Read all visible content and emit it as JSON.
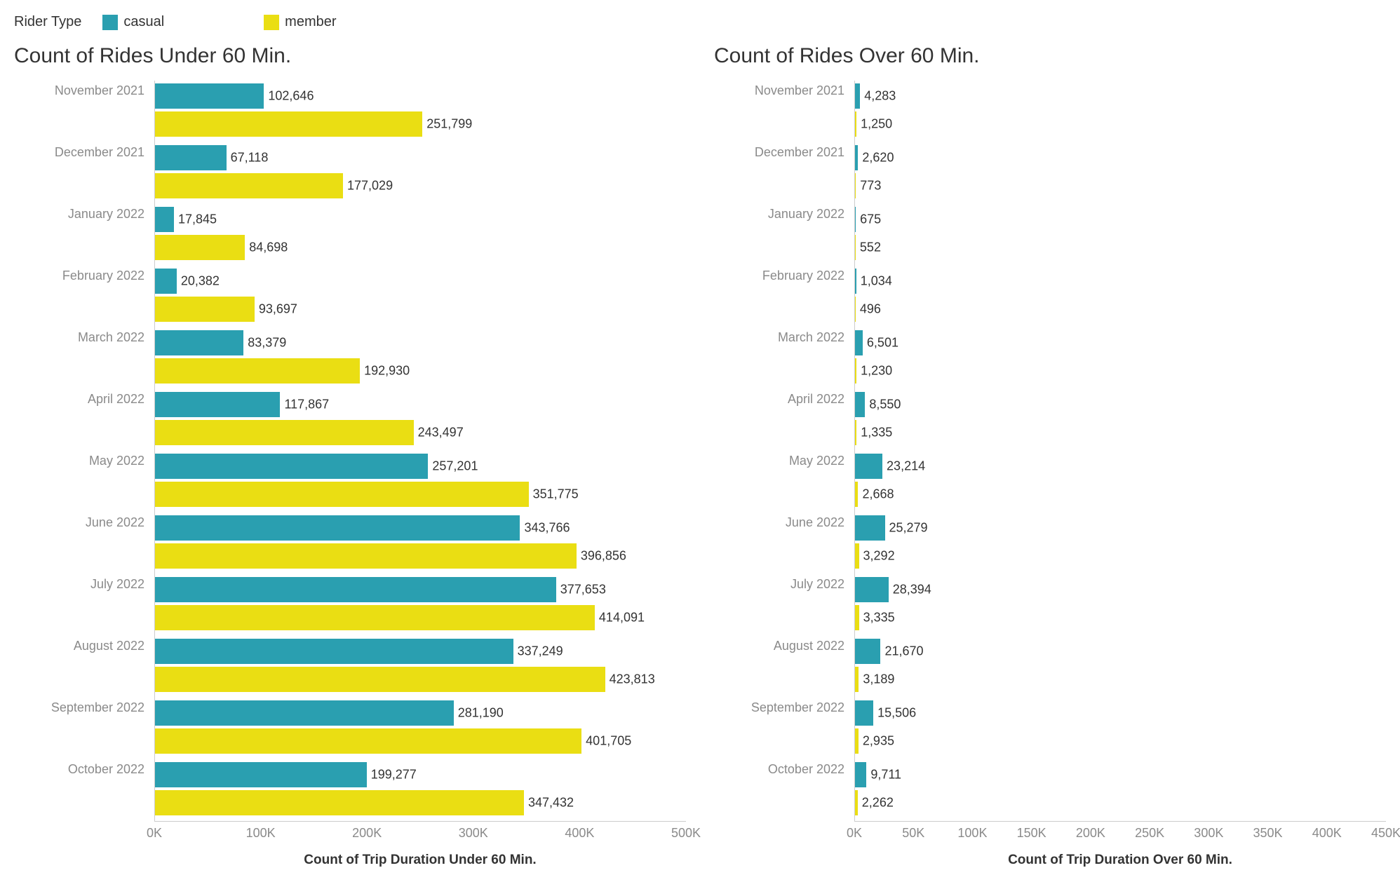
{
  "legend": {
    "title": "Rider Type",
    "items": [
      {
        "label": "casual",
        "color": "#2a9fb0"
      },
      {
        "label": "member",
        "color": "#eade13"
      }
    ]
  },
  "colors": {
    "casual": "#2a9fb0",
    "member": "#eade13",
    "background": "#ffffff",
    "axis": "#cccccc",
    "month_label": "#8a8a8a",
    "value_label": "#333333"
  },
  "months": [
    "November 2021",
    "December 2021",
    "January 2022",
    "February 2022",
    "March 2022",
    "April 2022",
    "May 2022",
    "June 2022",
    "July 2022",
    "August 2022",
    "September 2022",
    "October 2022"
  ],
  "left_chart": {
    "title": "Count of Rides Under 60 Min.",
    "x_title": "Count of Trip Duration Under 60 Min.",
    "xlim": 500000,
    "ticks": [
      {
        "v": 0,
        "label": "0K"
      },
      {
        "v": 100000,
        "label": "100K"
      },
      {
        "v": 200000,
        "label": "200K"
      },
      {
        "v": 300000,
        "label": "300K"
      },
      {
        "v": 400000,
        "label": "400K"
      },
      {
        "v": 500000,
        "label": "500K"
      }
    ],
    "data": [
      {
        "casual": 102646,
        "member": 251799
      },
      {
        "casual": 67118,
        "member": 177029
      },
      {
        "casual": 17845,
        "member": 84698
      },
      {
        "casual": 20382,
        "member": 93697
      },
      {
        "casual": 83379,
        "member": 192930
      },
      {
        "casual": 117867,
        "member": 243497
      },
      {
        "casual": 257201,
        "member": 351775
      },
      {
        "casual": 343766,
        "member": 396856
      },
      {
        "casual": 377653,
        "member": 414091
      },
      {
        "casual": 337249,
        "member": 423813
      },
      {
        "casual": 281190,
        "member": 401705
      },
      {
        "casual": 199277,
        "member": 347432
      }
    ]
  },
  "right_chart": {
    "title": "Count of Rides Over 60 Min.",
    "x_title": "Count of Trip Duration Over 60 Min.",
    "xlim": 450000,
    "ticks": [
      {
        "v": 0,
        "label": "0K"
      },
      {
        "v": 50000,
        "label": "50K"
      },
      {
        "v": 100000,
        "label": "100K"
      },
      {
        "v": 150000,
        "label": "150K"
      },
      {
        "v": 200000,
        "label": "200K"
      },
      {
        "v": 250000,
        "label": "250K"
      },
      {
        "v": 300000,
        "label": "300K"
      },
      {
        "v": 350000,
        "label": "350K"
      },
      {
        "v": 400000,
        "label": "400K"
      },
      {
        "v": 450000,
        "label": "450K"
      }
    ],
    "data": [
      {
        "casual": 4283,
        "member": 1250
      },
      {
        "casual": 2620,
        "member": 773
      },
      {
        "casual": 675,
        "member": 552
      },
      {
        "casual": 1034,
        "member": 496
      },
      {
        "casual": 6501,
        "member": 1230
      },
      {
        "casual": 8550,
        "member": 1335
      },
      {
        "casual": 23214,
        "member": 2668
      },
      {
        "casual": 25279,
        "member": 3292
      },
      {
        "casual": 28394,
        "member": 3335
      },
      {
        "casual": 21670,
        "member": 3189
      },
      {
        "casual": 15506,
        "member": 2935
      },
      {
        "casual": 9711,
        "member": 2262
      }
    ]
  }
}
